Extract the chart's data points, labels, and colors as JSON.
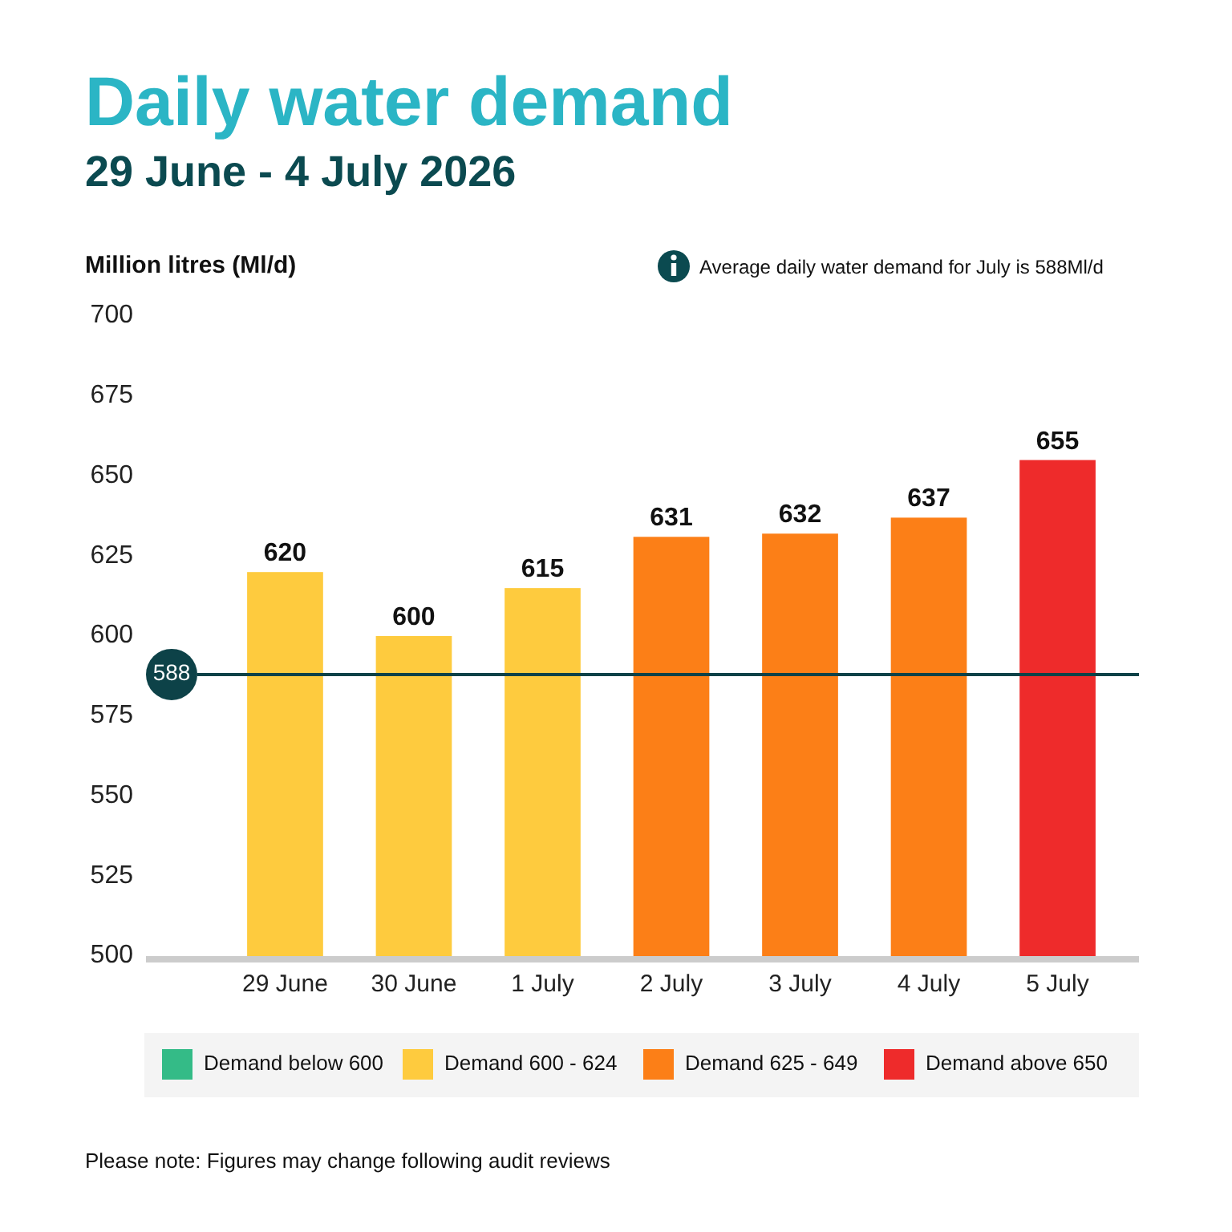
{
  "chart_data": {
    "type": "bar",
    "title": "Daily water demand",
    "subtitle": "29 June - 4 July 2026",
    "ylabel": "Million litres (Ml/d)",
    "categories": [
      "29 June",
      "30 June",
      "1 July",
      "2 July",
      "3 July",
      "4 July",
      "5 July"
    ],
    "series": [
      {
        "name": "Demand below 600",
        "color": "#34bb87",
        "values": [
          null,
          null,
          null,
          null,
          null,
          null,
          null
        ]
      },
      {
        "name": "Demand 600 - 624",
        "color": "#fecb3e",
        "values": [
          620,
          600,
          615,
          null,
          null,
          null,
          null
        ]
      },
      {
        "name": "Demand 625 - 649",
        "color": "#fc7f17",
        "values": [
          null,
          null,
          null,
          631,
          632,
          637,
          null
        ]
      },
      {
        "name": "Demand above 650",
        "color": "#ee2b2b",
        "values": [
          null,
          null,
          null,
          null,
          null,
          null,
          655
        ]
      }
    ],
    "stacked": true,
    "ylim": [
      500,
      700
    ],
    "yticks": [
      500,
      525,
      550,
      575,
      600,
      625,
      650,
      675,
      700
    ],
    "ref_lines": [
      {
        "axis": "y",
        "value": 588,
        "label": "588",
        "color": "#0d4248"
      }
    ],
    "data_labels": true,
    "legend": "bottom",
    "annotations": [
      "Average daily water demand for July is 588Ml/d",
      "Please note: Figures may change following audit reviews"
    ]
  }
}
